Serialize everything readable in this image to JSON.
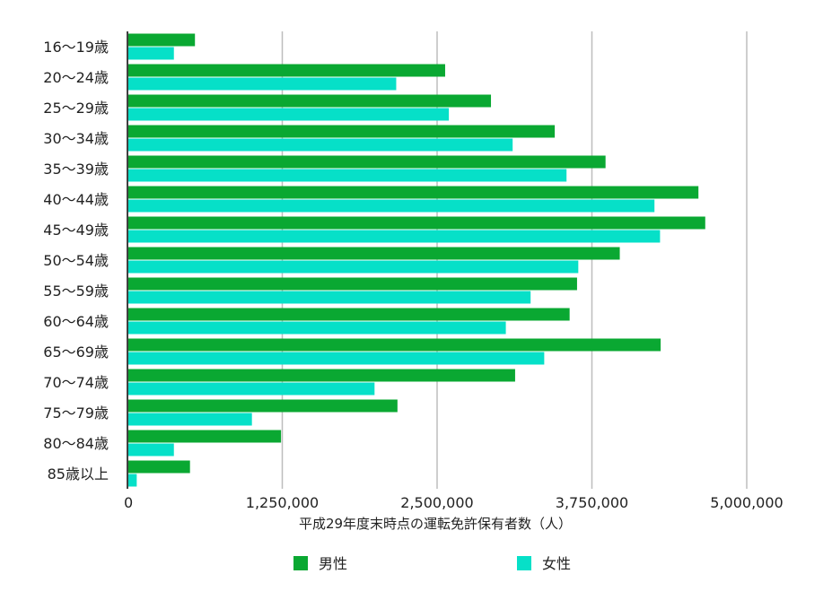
{
  "chart_data": {
    "type": "bar",
    "orientation": "horizontal",
    "title": "",
    "xlabel": "平成29年度末時点の運転免許保有者数（人）",
    "ylabel": "",
    "xlim": [
      0,
      5000000
    ],
    "x_ticks": [
      0,
      1250000,
      2500000,
      3750000,
      5000000
    ],
    "x_tick_labels": [
      "0",
      "1,250,000",
      "2,500,000",
      "3,750,000",
      "5,000,000"
    ],
    "grid": true,
    "legend_position": "bottom",
    "categories": [
      "16〜19歳",
      "20〜24歳",
      "25〜29歳",
      "30〜34歳",
      "35〜39歳",
      "40〜44歳",
      "45〜49歳",
      "50〜54歳",
      "55〜59歳",
      "60〜64歳",
      "65〜69歳",
      "70〜74歳",
      "75〜79歳",
      "80〜84歳",
      "85歳以上"
    ],
    "series": [
      {
        "name": "男性",
        "color": "#0aa832",
        "values": [
          545000,
          2565000,
          2935000,
          3450000,
          3860000,
          4610000,
          4665000,
          3975000,
          3630000,
          3570000,
          4305000,
          3130000,
          2180000,
          1240000,
          505000
        ]
      },
      {
        "name": "女性",
        "color": "#06e0c8",
        "values": [
          375000,
          2170000,
          2595000,
          3110000,
          3545000,
          4255000,
          4300000,
          3640000,
          3255000,
          3055000,
          3365000,
          1995000,
          1005000,
          375000,
          75000
        ]
      }
    ]
  }
}
